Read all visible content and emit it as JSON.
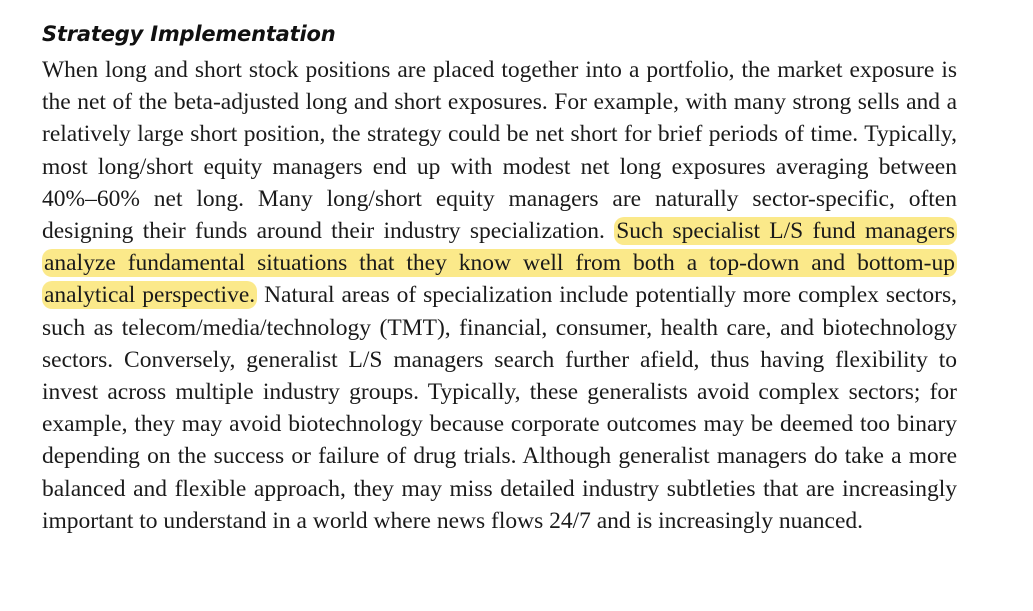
{
  "section": {
    "heading": "Strategy Implementation"
  },
  "paragraph": {
    "part_before_highlight": "When long and short stock positions are placed together into a portfolio, the market exposure is the net of the beta-adjusted long and short exposures. For example, with many strong sells and a relatively large short position, the strategy could be net short for brief periods of time. Typically, most long/short equity managers end up with modest net long exposures averaging between 40%–60% net long. Many long/short equity managers are naturally sector-specific, often designing their funds around their industry specialization. ",
    "highlighted": "Such specialist L/S fund managers analyze fundamen­tal situations that they know well from both a top-down and bottom-up analytical perspective.",
    "part_after_highlight": " Natural areas of specialization include potentially more complex sectors, such as telecom/media/technology (TMT), financial, consumer, health care, and bio­technology sectors. Conversely, generalist L/S managers search further afield, thus having flexibility to invest across multiple industry groups. Typically, these generalists avoid complex sectors; for example, they may avoid biotechnology because corporate outcomes may be deemed too binary depending on the success or failure of drug trials. Although generalist managers do take a more balanced and flexible approach, they may miss detailed industry subtleties that are increasingly important to understand in a world where news flows 24/7 and is increasingly nuanced."
  },
  "colors": {
    "highlight": "#fbe98a",
    "text": "#1a1a1a"
  }
}
